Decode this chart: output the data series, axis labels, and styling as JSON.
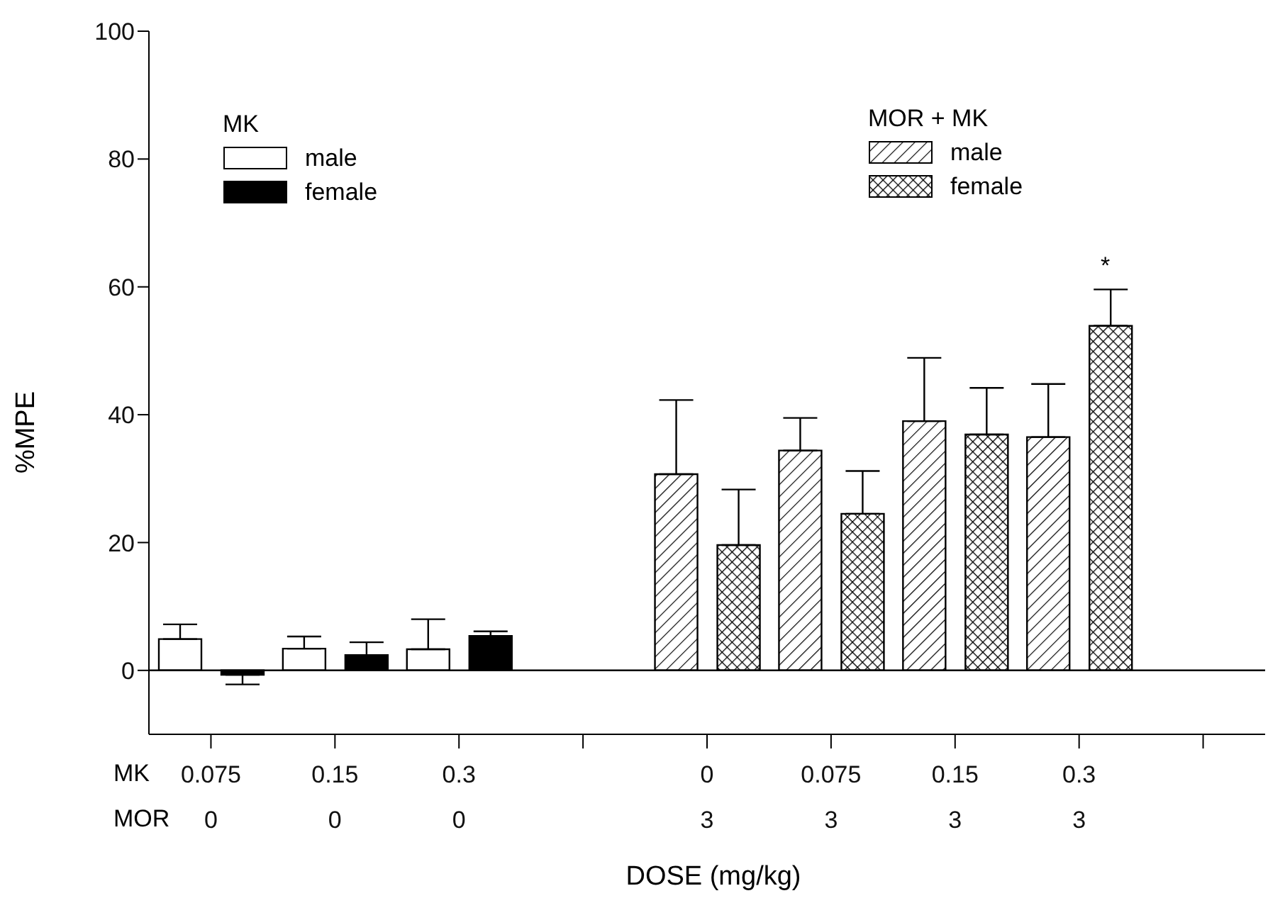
{
  "chart_data": {
    "type": "bar",
    "xlabel": "DOSE (mg/kg)",
    "ylabel": "%MPE",
    "categories": [
      "0.075\n0",
      "0.15\n0",
      "0.3\n0",
      null,
      "0\n3",
      "0.075\n3",
      "0.15\n3",
      "0.3\n3",
      null
    ],
    "series": [
      {
        "name": "male",
        "color": "#ffffff",
        "values": [
          4.9,
          3.4,
          3.3,
          null,
          null,
          null,
          null,
          null,
          null
        ],
        "errors": [
          [
            4.9,
            7.2
          ],
          [
            3.4,
            5.3
          ],
          [
            3.3,
            8.0
          ],
          null,
          null,
          null,
          null,
          null,
          null
        ]
      },
      {
        "name": "female",
        "color": "#000000",
        "values": [
          -0.7,
          2.4,
          5.4,
          null,
          null,
          null,
          null,
          null,
          null
        ],
        "errors": [
          [
            -2.2,
            -0.7
          ],
          [
            2.4,
            4.4
          ],
          [
            5.4,
            6.1
          ],
          null,
          null,
          null,
          null,
          null,
          null
        ]
      },
      {
        "name": "male",
        "color": "#000000",
        "values": [
          null,
          null,
          null,
          null,
          30.7,
          34.4,
          39.0,
          36.5,
          null
        ],
        "errors": [
          null,
          null,
          null,
          null,
          [
            30.7,
            42.3
          ],
          [
            34.4,
            39.5
          ],
          [
            39.0,
            48.9
          ],
          [
            36.5,
            44.8
          ],
          null
        ]
      },
      {
        "name": "female",
        "color": "#000000",
        "values": [
          null,
          null,
          null,
          null,
          19.6,
          24.5,
          36.9,
          53.9,
          null
        ],
        "errors": [
          null,
          null,
          null,
          null,
          [
            19.6,
            28.3
          ],
          [
            24.5,
            31.2
          ],
          [
            36.9,
            44.2
          ],
          [
            53.9,
            59.6
          ],
          null
        ]
      }
    ],
    "ylim": [
      -10,
      100
    ],
    "yticks": [
      0,
      20,
      40,
      60,
      80,
      100
    ],
    "grid": false,
    "legend": "top",
    "ref_lines": [
      {
        "axis": "y",
        "value": 0
      }
    ],
    "annotations": [
      "MK",
      "MOR + MK",
      "MK",
      "MOR",
      "*"
    ]
  }
}
